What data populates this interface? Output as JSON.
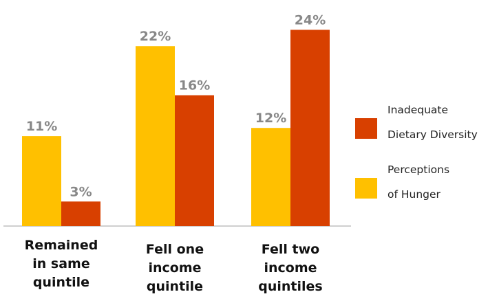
{
  "chart_data": {
    "type": "bar",
    "categories": [
      [
        "Remained",
        "in same",
        "quintile"
      ],
      [
        "Fell one",
        "income",
        "quintile"
      ],
      [
        "Fell two",
        "income",
        "quintiles"
      ]
    ],
    "series": [
      {
        "name": "Perceptions of Hunger",
        "legend_lines": [
          "Perceptions",
          "of Hunger"
        ],
        "color": "#FFC000",
        "values": [
          11,
          22,
          12
        ]
      },
      {
        "name": "Inadequate Dietary Diversity",
        "legend_lines": [
          "Inadequate",
          "Dietary Diversity"
        ],
        "color": "#D84000",
        "values": [
          3,
          16,
          24
        ]
      }
    ],
    "value_suffix": "%",
    "ylim": [
      0,
      25
    ],
    "grid": false,
    "legend_position": "right",
    "title": "",
    "xlabel": "",
    "ylabel": ""
  }
}
